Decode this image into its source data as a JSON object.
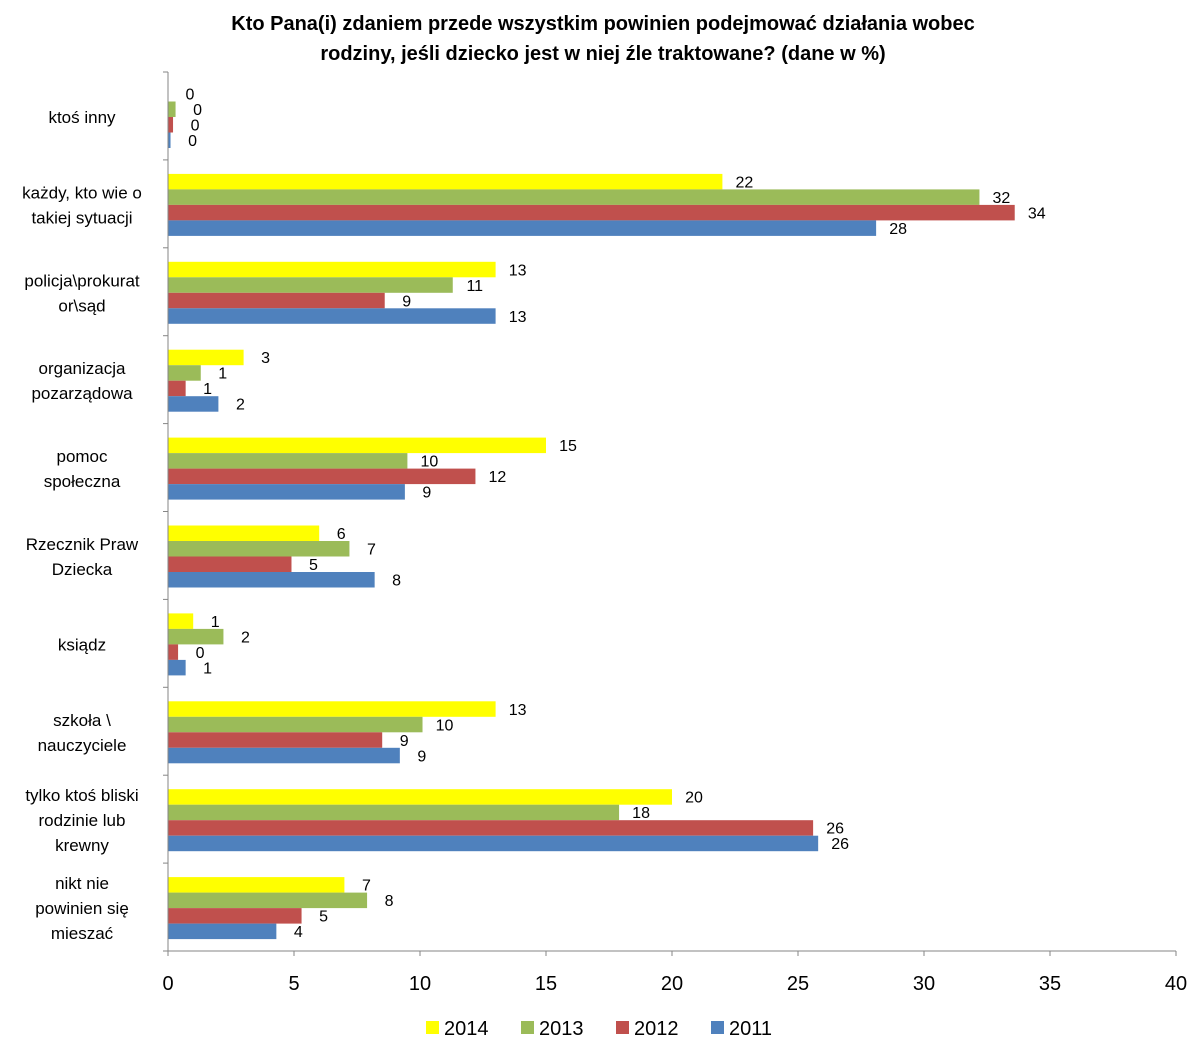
{
  "chart_data": {
    "type": "bar",
    "orientation": "horizontal",
    "title": "Kto Pana(i) zdaniem przede wszystkim powinien podejmować działania wobec rodziny, jeśli dziecko jest w niej źle traktowane? (dane w %)",
    "title_lines": [
      "Kto Pana(i) zdaniem przede wszystkim powinien podejmować działania wobec",
      "rodziny, jeśli dziecko jest w niej źle traktowane? (dane w %)"
    ],
    "categories": [
      "ktoś inny",
      "każdy, kto wie o takiej sytuacji",
      "policja\\prokurator\\sąd",
      "organizacja pozarządowa",
      "pomoc społeczna",
      "Rzecznik Praw Dziecka",
      "ksiądz",
      "szkoła \\ nauczyciele",
      "tylko ktoś bliski rodzinie lub krewny",
      "nikt nie powinien się mieszać"
    ],
    "category_label_lines": [
      [
        "ktoś inny"
      ],
      [
        "każdy, kto wie o",
        "takiej sytuacji"
      ],
      [
        "policja\\prokurat",
        "or\\sąd"
      ],
      [
        "organizacja",
        "pozarządowa"
      ],
      [
        "pomoc",
        "społeczna"
      ],
      [
        "Rzecznik Praw",
        "Dziecka"
      ],
      [
        "ksiądz"
      ],
      [
        "szkoła \\",
        "nauczyciele"
      ],
      [
        "tylko ktoś bliski",
        "rodzinie lub",
        "krewny"
      ],
      [
        "nikt nie",
        "powinien się",
        "mieszać"
      ]
    ],
    "series": [
      {
        "name": "2014",
        "color": "#FFFF00",
        "values": [
          0,
          22,
          13,
          3,
          15,
          6,
          1,
          13,
          20,
          7
        ],
        "labels": [
          "0",
          "22",
          "13",
          "3",
          "15",
          "6",
          "1",
          "13",
          "20",
          "7"
        ]
      },
      {
        "name": "2013",
        "color": "#9BBB59",
        "values": [
          0.3,
          32.2,
          11.3,
          1.3,
          9.5,
          7.2,
          2.2,
          10.1,
          17.9,
          7.9
        ],
        "labels": [
          "0",
          "32",
          "11",
          "1",
          "10",
          "7",
          "2",
          "10",
          "18",
          "8"
        ]
      },
      {
        "name": "2012",
        "color": "#C0504D",
        "values": [
          0.2,
          33.6,
          8.6,
          0.7,
          12.2,
          4.9,
          0.4,
          8.5,
          25.6,
          5.3
        ],
        "labels": [
          "0",
          "34",
          "9",
          "1",
          "12",
          "5",
          "0",
          "9",
          "26",
          "5"
        ]
      },
      {
        "name": "2011",
        "color": "#4F81BD",
        "values": [
          0.1,
          28.1,
          13.0,
          2.0,
          9.4,
          8.2,
          0.7,
          9.2,
          25.8,
          4.3
        ],
        "labels": [
          "0",
          "28",
          "13",
          "2",
          "9",
          "8",
          "1",
          "9",
          "26",
          "4"
        ]
      }
    ],
    "xlim": [
      0,
      40
    ],
    "xticks": [
      "0",
      "5",
      "10",
      "15",
      "20",
      "25",
      "30",
      "35",
      "40"
    ],
    "grid": false,
    "legend_position": "bottom"
  }
}
